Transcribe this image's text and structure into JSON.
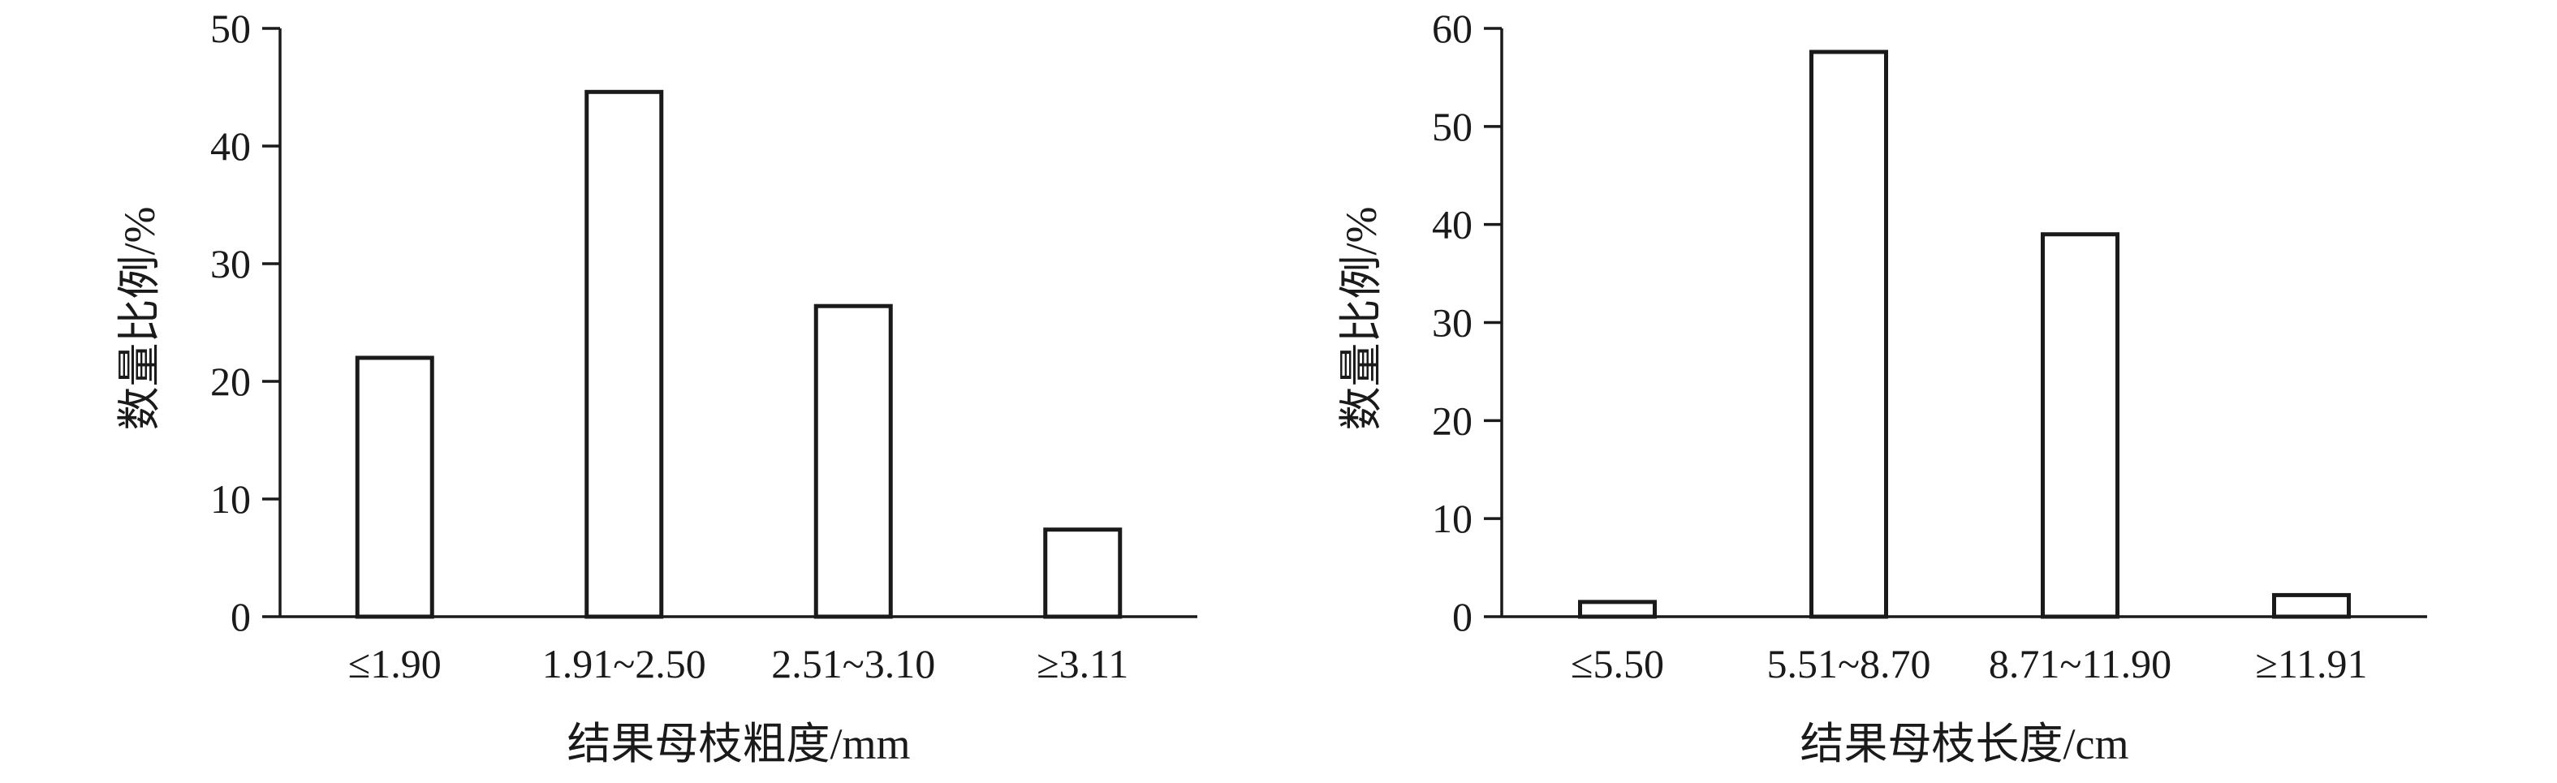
{
  "chart_data": [
    {
      "type": "bar",
      "categories": [
        "≤1.90",
        "1.91~2.50",
        "2.51~3.10",
        "≥3.11"
      ],
      "values": [
        22,
        44.6,
        26.4,
        7.4
      ],
      "xlabel": "结果母枝粗度/mm",
      "ylabel": "数量比例/%",
      "ylim": [
        0,
        50
      ],
      "yticks": [
        0,
        10,
        20,
        30,
        40,
        50
      ],
      "grid": false,
      "bar_fill": "#ffffff",
      "bar_stroke": "#1a1a1a"
    },
    {
      "type": "bar",
      "categories": [
        "≤5.50",
        "5.51~8.70",
        "8.71~11.90",
        "≥11.91"
      ],
      "values": [
        1.5,
        57.6,
        39,
        2.2
      ],
      "xlabel": "结果母枝长度/cm",
      "ylabel": "数量比例/%",
      "ylim": [
        0,
        60
      ],
      "yticks": [
        0,
        10,
        20,
        30,
        40,
        50,
        60
      ],
      "grid": false,
      "bar_fill": "#ffffff",
      "bar_stroke": "#1a1a1a"
    }
  ]
}
